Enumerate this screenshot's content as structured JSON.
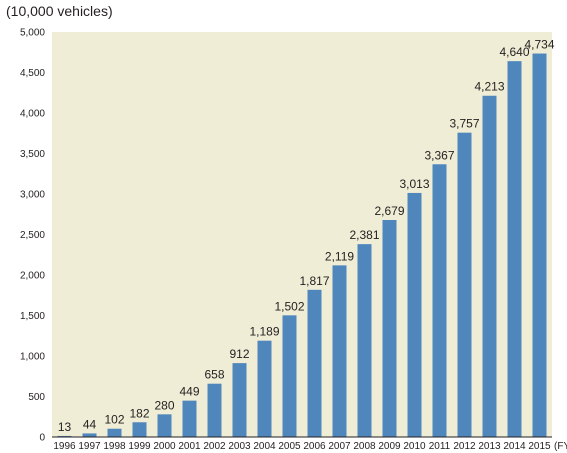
{
  "chart_data": {
    "type": "bar",
    "unit_label": "(10,000 vehicles)",
    "x_suffix": "(FY)",
    "categories": [
      "1996",
      "1997",
      "1998",
      "1999",
      "2000",
      "2001",
      "2002",
      "2003",
      "2004",
      "2005",
      "2006",
      "2007",
      "2008",
      "2009",
      "2010",
      "2011",
      "2012",
      "2013",
      "2014",
      "2015"
    ],
    "values": [
      13,
      44,
      102,
      182,
      280,
      449,
      658,
      912,
      1189,
      1502,
      1817,
      2119,
      2381,
      2679,
      3013,
      3367,
      3757,
      4213,
      4640,
      4734
    ],
    "value_labels": [
      "13",
      "44",
      "102",
      "182",
      "280",
      "449",
      "658",
      "912",
      "1,189",
      "1,502",
      "1,817",
      "2,119",
      "2,381",
      "2,679",
      "3,013",
      "3,367",
      "3,757",
      "4,213",
      "4,640",
      "4,734"
    ],
    "y_ticks": [
      0,
      500,
      1000,
      1500,
      2000,
      2500,
      3000,
      3500,
      4000,
      4500,
      5000
    ],
    "y_tick_labels": [
      "0",
      "500",
      "1,000",
      "1,500",
      "2,000",
      "2,500",
      "3,000",
      "3,500",
      "4,000",
      "4,500",
      "5,000"
    ],
    "ylim": [
      0,
      5000
    ],
    "grid": false,
    "colors": {
      "bar": "#4f87bd",
      "plot_background": "#efedd6",
      "axis": "#231f20"
    }
  }
}
